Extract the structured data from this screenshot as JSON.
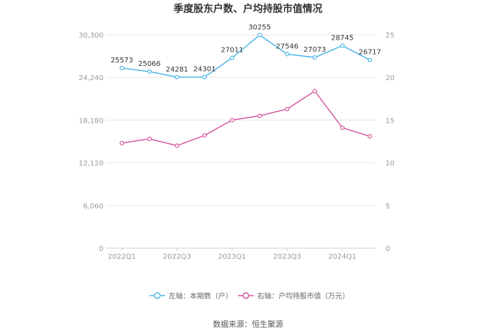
{
  "chart_data": {
    "type": "line",
    "title": "季度股东户数、户均持股市值情况",
    "categories": [
      "2022Q1",
      "2022Q2",
      "2022Q3",
      "2022Q4",
      "2023Q1",
      "2023Q2",
      "2023Q3",
      "2023Q4",
      "2024Q1",
      "2024Q2"
    ],
    "x_tick_labels": [
      "2022Q1",
      "2022Q3",
      "2023Q1",
      "2023Q3",
      "2024Q1"
    ],
    "left_axis": {
      "ticks": [
        "0",
        "6,060",
        "12,120",
        "18,180",
        "24,240",
        "30,300"
      ],
      "ylim": [
        0,
        30300
      ]
    },
    "right_axis": {
      "ticks": [
        "0",
        "5",
        "10",
        "15",
        "20",
        "25"
      ],
      "ylim": [
        0,
        25
      ]
    },
    "series": [
      {
        "name": "左轴：本期数（户）",
        "axis": "left",
        "color": "#4db8ea",
        "values": [
          25573,
          25066,
          24281,
          24301,
          27011,
          30255,
          27546,
          27073,
          28745,
          26717
        ],
        "labels": [
          "25573",
          "25066",
          "24281",
          "24301",
          "27011",
          "30255",
          "27546",
          "27073",
          "28745",
          "26717"
        ]
      },
      {
        "name": "右轴：户均持股市值（万元）",
        "axis": "right",
        "color": "#d4589f",
        "values": [
          12.3,
          12.8,
          12.0,
          13.2,
          15.0,
          15.5,
          16.3,
          18.4,
          14.1,
          13.1
        ]
      }
    ],
    "grid": true,
    "legend": "bottom"
  },
  "source": "数据来源：恒生聚源"
}
